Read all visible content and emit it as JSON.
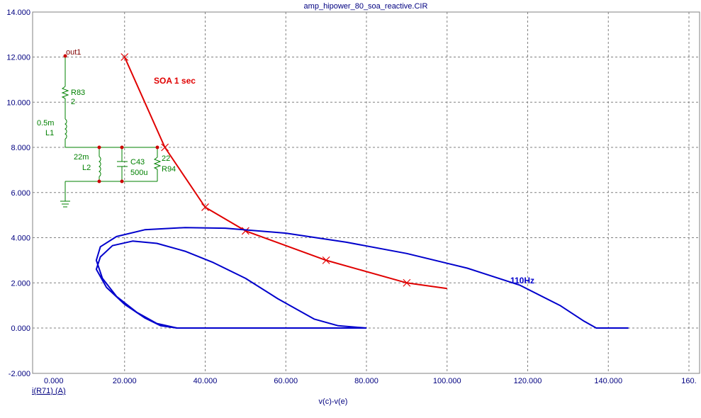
{
  "chart_data": {
    "type": "line",
    "title": "amp_hipower_80_soa_reactive.CIR",
    "xlabel": "v(c)-v(e)",
    "ylabel": "i(R71) (A)",
    "xlim": [
      0,
      160
    ],
    "ylim": [
      -2,
      14
    ],
    "x_ticks": [
      "0.000",
      "20.000",
      "40.000",
      "60.000",
      "80.000",
      "100.000",
      "120.000",
      "140.000",
      "160."
    ],
    "y_ticks": [
      "-2.000",
      "0.000",
      "2.000",
      "4.000",
      "6.000",
      "8.000",
      "10.000",
      "12.000",
      "14.000"
    ],
    "grid": true,
    "series": [
      {
        "color": "#e00000",
        "markers": true,
        "points": [
          [
            20,
            12
          ],
          [
            30,
            8
          ],
          [
            40,
            5.35
          ],
          [
            50,
            4.3
          ],
          [
            70,
            3
          ],
          [
            90,
            2
          ],
          [
            100,
            1.75
          ]
        ]
      },
      {
        "color": "#0000cc",
        "points": [
          [
            145,
            0
          ],
          [
            137,
            0
          ],
          [
            134,
            0.3
          ],
          [
            128,
            1
          ],
          [
            118,
            1.9
          ],
          [
            105,
            2.65
          ],
          [
            90,
            3.3
          ],
          [
            75,
            3.8
          ],
          [
            60,
            4.2
          ],
          [
            45,
            4.42
          ],
          [
            35,
            4.45
          ],
          [
            25,
            4.35
          ],
          [
            18,
            4.05
          ],
          [
            14,
            3.6
          ],
          [
            13,
            3.0
          ],
          [
            14.5,
            2.2
          ],
          [
            18,
            1.4
          ],
          [
            23,
            0.7
          ],
          [
            28,
            0.2
          ],
          [
            33,
            0
          ],
          [
            45,
            0
          ],
          [
            60,
            0
          ],
          [
            80,
            0
          ]
        ]
      },
      {
        "color": "#0000cc",
        "points": [
          [
            80,
            0
          ],
          [
            73,
            0.1
          ],
          [
            67,
            0.4
          ],
          [
            58,
            1.3
          ],
          [
            50,
            2.2
          ],
          [
            42,
            2.9
          ],
          [
            35,
            3.4
          ],
          [
            28,
            3.75
          ],
          [
            22,
            3.85
          ],
          [
            17,
            3.65
          ],
          [
            14,
            3.15
          ],
          [
            13,
            2.6
          ],
          [
            15.5,
            1.8
          ],
          [
            20,
            1.05
          ],
          [
            25,
            0.45
          ],
          [
            29,
            0.1
          ],
          [
            33,
            0
          ]
        ]
      }
    ],
    "annotations": [
      {
        "text": "SOA 1 sec",
        "x": 27.5,
        "y": 10.9,
        "color": "#e00000"
      },
      {
        "text": "110Hz",
        "x": 115,
        "y": 2.1,
        "color": "#0000cc"
      }
    ]
  },
  "schematic": {
    "node": "out1",
    "r83": {
      "name": "R83",
      "value": "2"
    },
    "l1": {
      "name": "L1",
      "value": "0.5m"
    },
    "l2": {
      "name": "L2",
      "value": "22m"
    },
    "c43": {
      "name": "C43",
      "value": "500u"
    },
    "r94": {
      "name": "R94",
      "value": "22"
    }
  }
}
